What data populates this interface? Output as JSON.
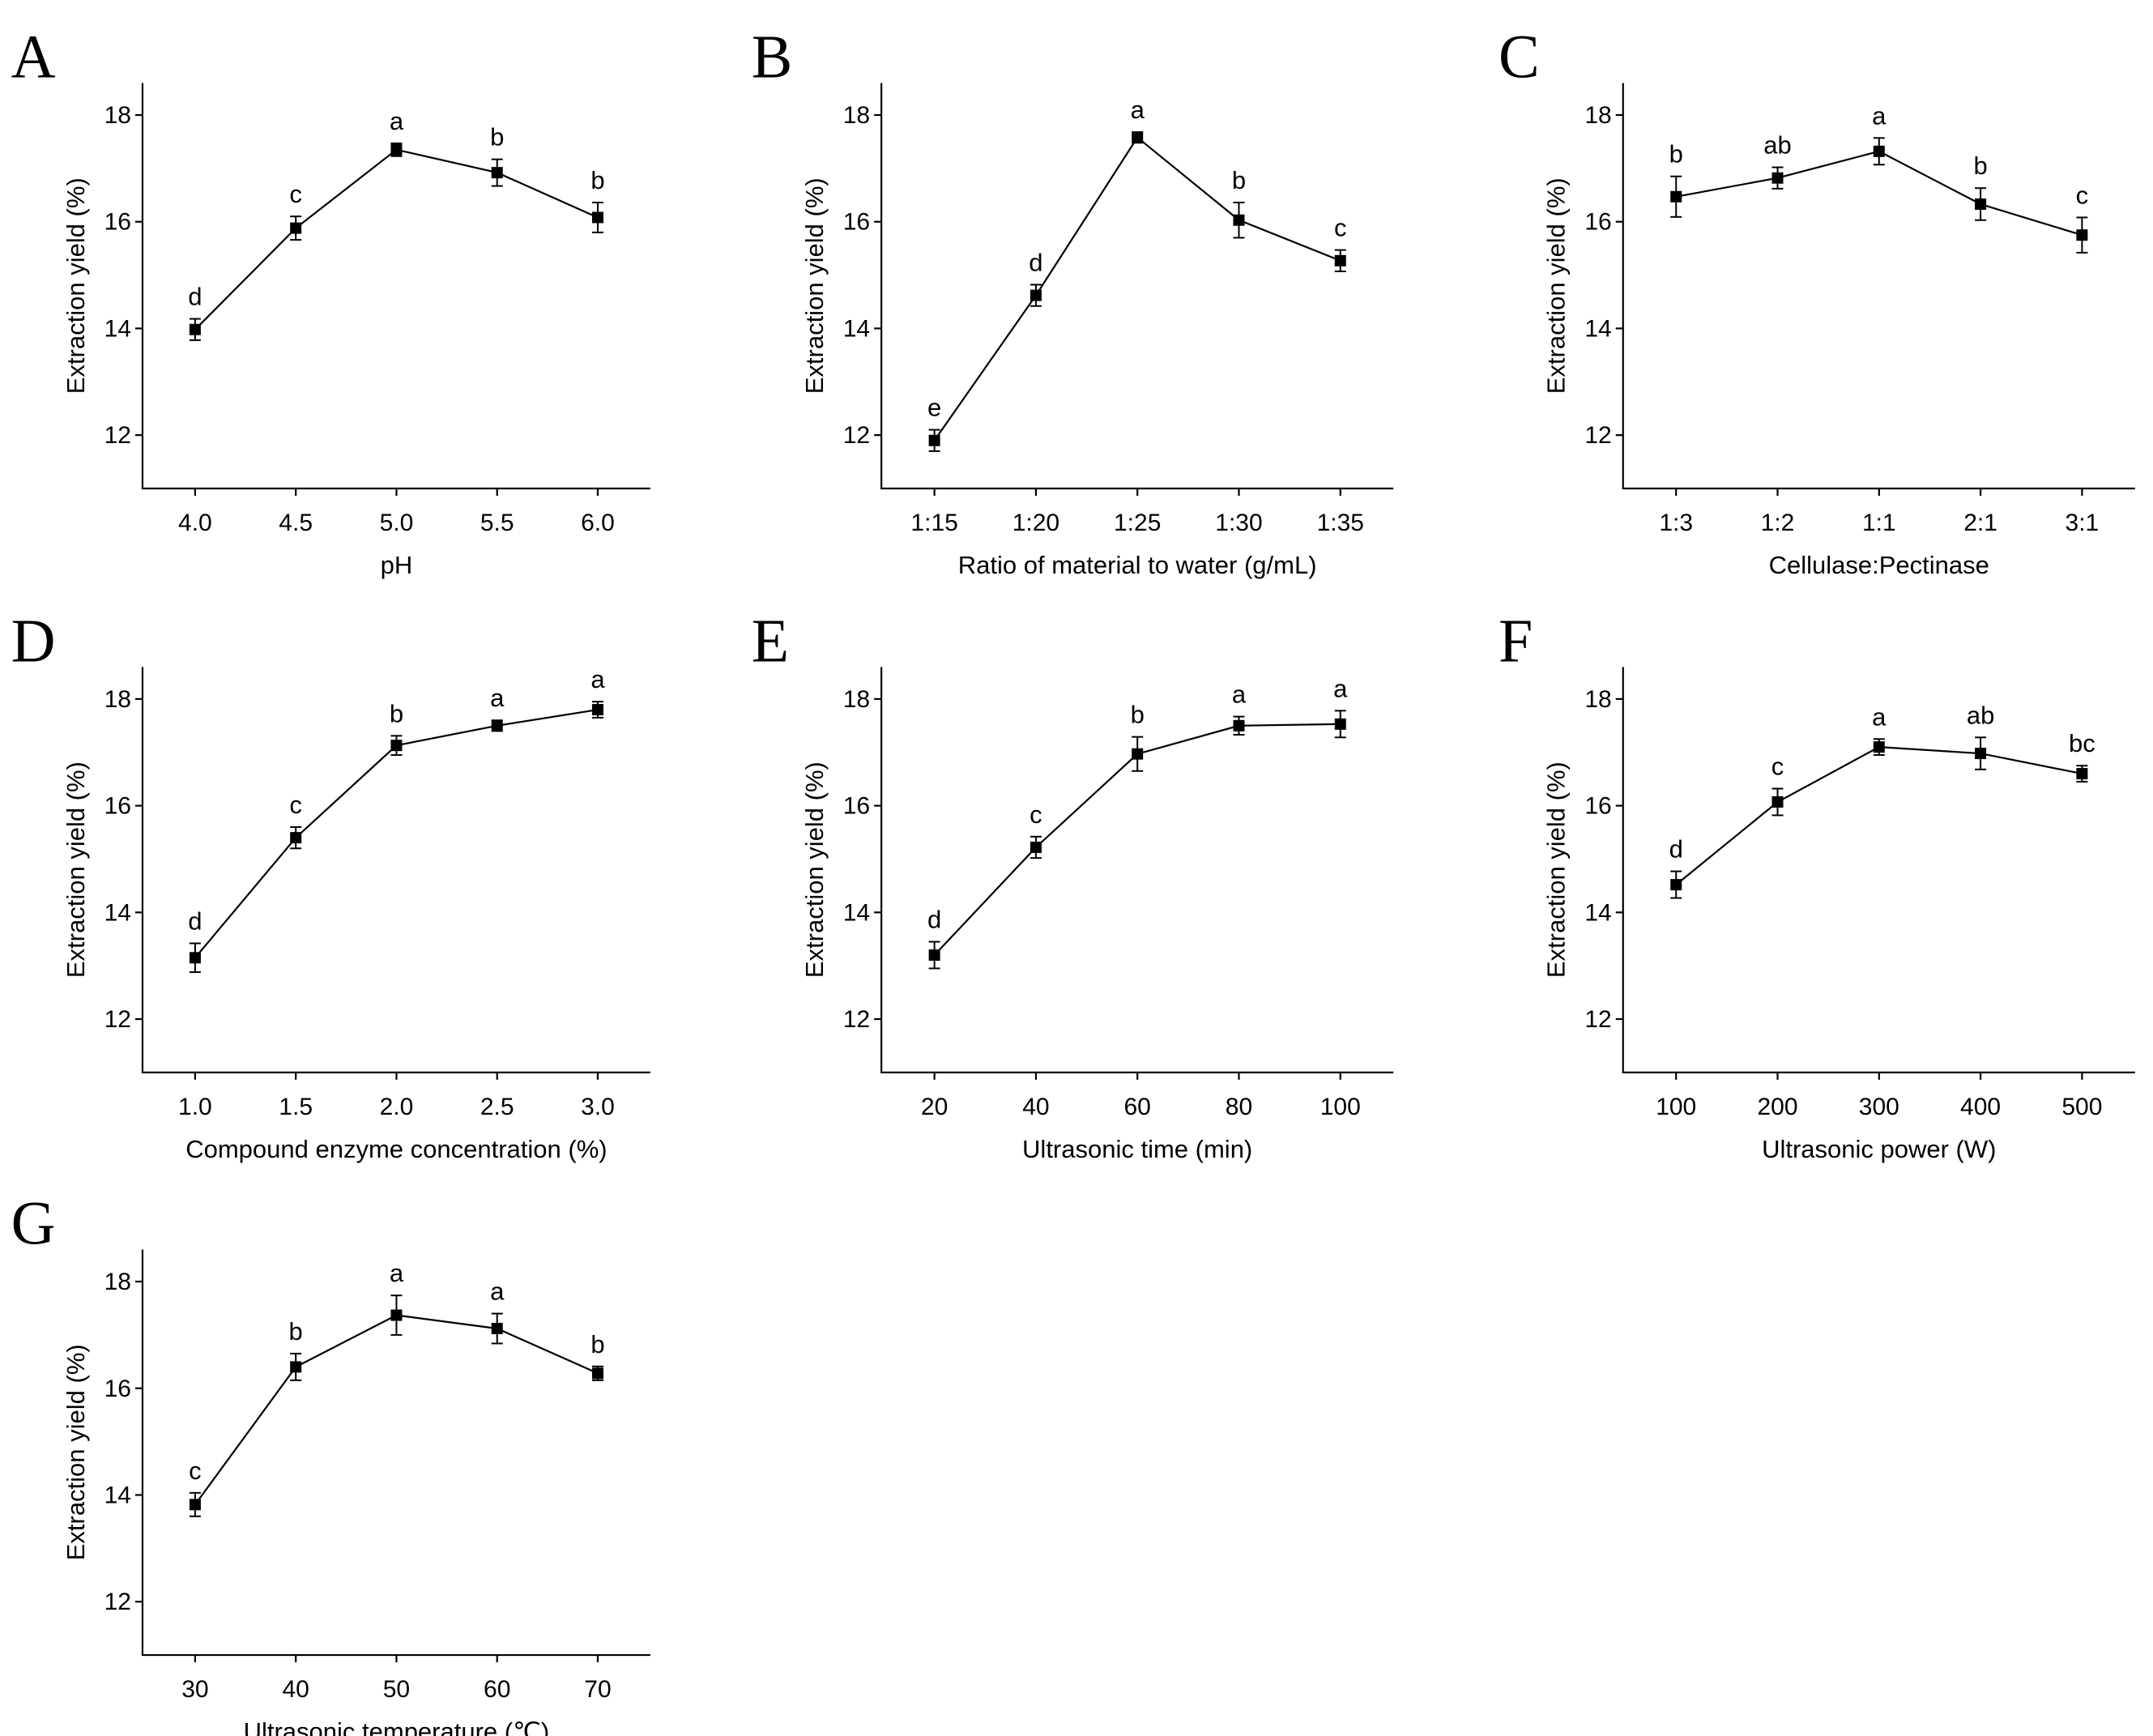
{
  "chart_data": [
    {
      "panel": "A",
      "type": "line",
      "categories": [
        "4.0",
        "4.5",
        "5.0",
        "5.5",
        "6.0"
      ],
      "values": [
        13.98,
        15.88,
        17.35,
        16.92,
        16.08
      ],
      "errors": [
        0.2,
        0.22,
        0.12,
        0.25,
        0.28
      ],
      "significance": [
        "d",
        "c",
        "a",
        "b",
        "b"
      ],
      "xlabel": "pH",
      "ylabel": "Extraction yield (%)",
      "yticks": [
        "12",
        "14",
        "16",
        "18"
      ],
      "ylim": [
        11,
        18.6
      ]
    },
    {
      "panel": "B",
      "type": "line",
      "categories": [
        "1:15",
        "1:20",
        "1:25",
        "1:30",
        "1:35"
      ],
      "values": [
        11.9,
        14.62,
        17.58,
        16.03,
        15.27
      ],
      "errors": [
        0.2,
        0.2,
        0.1,
        0.33,
        0.2
      ],
      "significance": [
        "e",
        "d",
        "a",
        "b",
        "c"
      ],
      "xlabel": "Ratio of material to water (g/mL)",
      "ylabel": "Extraction yield (%)",
      "yticks": [
        "12",
        "14",
        "16",
        "18"
      ],
      "ylim": [
        11,
        18.6
      ]
    },
    {
      "panel": "C",
      "type": "line",
      "categories": [
        "1:3",
        "1:2",
        "1:1",
        "2:1",
        "3:1"
      ],
      "values": [
        16.47,
        16.82,
        17.32,
        16.33,
        15.75
      ],
      "errors": [
        0.38,
        0.2,
        0.25,
        0.3,
        0.33
      ],
      "significance": [
        "b",
        "ab",
        "a",
        "b",
        "c"
      ],
      "xlabel": "Cellulase:Pectinase",
      "ylabel": "Extraction yield (%)",
      "yticks": [
        "12",
        "14",
        "16",
        "18"
      ],
      "ylim": [
        11,
        18.6
      ]
    },
    {
      "panel": "D",
      "type": "line",
      "categories": [
        "1.0",
        "1.5",
        "2.0",
        "2.5",
        "3.0"
      ],
      "values": [
        13.15,
        15.4,
        17.13,
        17.5,
        17.8
      ],
      "errors": [
        0.27,
        0.2,
        0.18,
        0.1,
        0.15
      ],
      "significance": [
        "d",
        "c",
        "b",
        "a",
        "a"
      ],
      "xlabel": "Compound enzyme concentration (%)",
      "ylabel": "Extraction yield (%)",
      "yticks": [
        "12",
        "14",
        "16",
        "18"
      ],
      "ylim": [
        11,
        18.6
      ]
    },
    {
      "panel": "E",
      "type": "line",
      "categories": [
        "20",
        "40",
        "60",
        "80",
        "100"
      ],
      "values": [
        13.2,
        15.22,
        16.97,
        17.5,
        17.53
      ],
      "errors": [
        0.25,
        0.2,
        0.32,
        0.17,
        0.25
      ],
      "significance": [
        "d",
        "c",
        "b",
        "a",
        "a"
      ],
      "xlabel": "Ultrasonic time (min)",
      "ylabel": "Extraction yield (%)",
      "yticks": [
        "12",
        "14",
        "16",
        "18"
      ],
      "ylim": [
        11,
        18.6
      ]
    },
    {
      "panel": "F",
      "type": "line",
      "categories": [
        "100",
        "200",
        "300",
        "400",
        "500"
      ],
      "values": [
        14.52,
        16.07,
        17.1,
        16.98,
        16.6
      ],
      "errors": [
        0.25,
        0.25,
        0.15,
        0.3,
        0.15
      ],
      "significance": [
        "d",
        "c",
        "a",
        "ab",
        "bc"
      ],
      "xlabel": "Ultrasonic power (W)",
      "ylabel": "Extraction yield (%)",
      "yticks": [
        "12",
        "14",
        "16",
        "18"
      ],
      "ylim": [
        11,
        18.6
      ]
    },
    {
      "panel": "G",
      "type": "line",
      "categories": [
        "30",
        "40",
        "50",
        "60",
        "70"
      ],
      "values": [
        13.82,
        16.4,
        17.37,
        17.12,
        16.28
      ],
      "errors": [
        0.22,
        0.25,
        0.37,
        0.28,
        0.13
      ],
      "significance": [
        "c",
        "b",
        "a",
        "a",
        "b"
      ],
      "xlabel": "Ultrasonic temperature (℃)",
      "ylabel": "Extraction yield (%)",
      "yticks": [
        "12",
        "14",
        "16",
        "18"
      ],
      "ylim": [
        11,
        18.6
      ]
    }
  ]
}
